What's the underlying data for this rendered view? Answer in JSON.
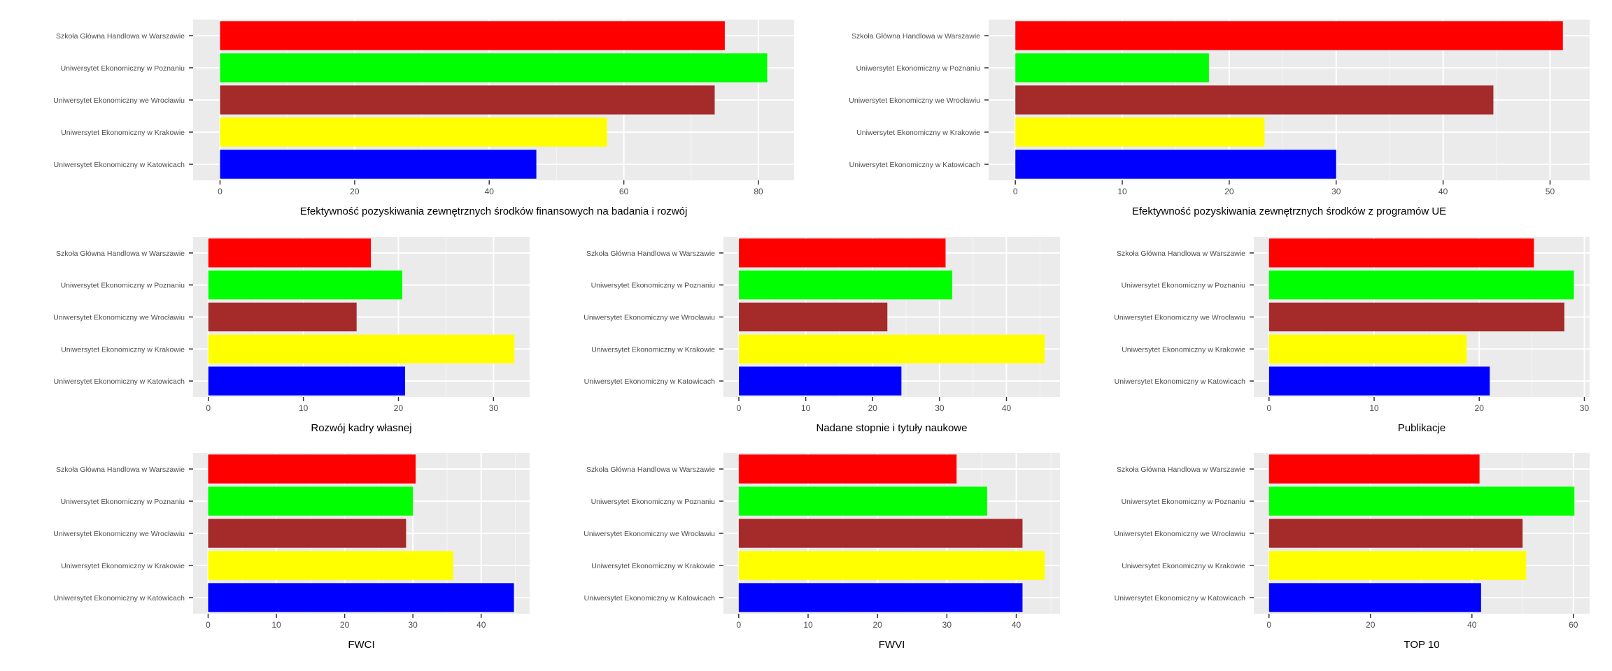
{
  "chart_data": [
    {
      "type": "bar",
      "orientation": "horizontal",
      "categories": [
        "Szkoła Główna Handlowa w Warszawie",
        "Uniwersytet Ekonomiczny w Poznaniu",
        "Uniwersytet Ekonomiczny we Wrocławiu",
        "Uniwersytet Ekonomiczny w Krakowie",
        "Uniwersytet Ekonomiczny w Katowicach"
      ],
      "values": [
        75,
        81.3,
        73.5,
        57.5,
        47
      ],
      "colors": [
        "#ff0000",
        "#00ff00",
        "#a52a2a",
        "#ffff00",
        "#0000ff"
      ],
      "xlabel": "Efektywność pozyskiwania zewnętrznych środków finansowych na badania i rozwój",
      "xlim": [
        -4,
        85.3
      ],
      "xticks": [
        0,
        20,
        40,
        60,
        80
      ],
      "grid": true
    },
    {
      "type": "bar",
      "orientation": "horizontal",
      "categories": [
        "Szkoła Główna Handlowa w Warszawie",
        "Uniwersytet Ekonomiczny w Poznaniu",
        "Uniwersytet Ekonomiczny we Wrocławiu",
        "Uniwersytet Ekonomiczny w Krakowie",
        "Uniwersytet Ekonomiczny w Katowicach"
      ],
      "values": [
        51.2,
        18.1,
        44.7,
        23.3,
        30
      ],
      "colors": [
        "#ff0000",
        "#00ff00",
        "#a52a2a",
        "#ffff00",
        "#0000ff"
      ],
      "xlabel": "Efektywność pozyskiwania zewnętrznych środków z programów UE",
      "xlim": [
        -2.5,
        53.7
      ],
      "xticks": [
        0,
        10,
        20,
        30,
        40,
        50
      ],
      "grid": true
    },
    {
      "type": "bar",
      "orientation": "horizontal",
      "categories": [
        "Szkoła Główna Handlowa w Warszawie",
        "Uniwersytet Ekonomiczny w Poznaniu",
        "Uniwersytet Ekonomiczny we Wrocławiu",
        "Uniwersytet Ekonomiczny w Krakowie",
        "Uniwersytet Ekonomiczny w Katowicach"
      ],
      "values": [
        17.1,
        20.4,
        15.6,
        32.2,
        20.7
      ],
      "colors": [
        "#ff0000",
        "#00ff00",
        "#a52a2a",
        "#ffff00",
        "#0000ff"
      ],
      "xlabel": "Rozwój kadry własnej",
      "xlim": [
        -1.6,
        33.8
      ],
      "xticks": [
        0,
        10,
        20,
        30
      ],
      "grid": true
    },
    {
      "type": "bar",
      "orientation": "horizontal",
      "categories": [
        "Szkoła Główna Handlowa w Warszawie",
        "Uniwersytet Ekonomiczny w Poznaniu",
        "Uniwersytet Ekonomiczny we Wrocławiu",
        "Uniwersytet Ekonomiczny w Krakowie",
        "Uniwersytet Ekonomiczny w Katowicach"
      ],
      "values": [
        30.9,
        31.9,
        22.2,
        45.7,
        24.3
      ],
      "colors": [
        "#ff0000",
        "#00ff00",
        "#a52a2a",
        "#ffff00",
        "#0000ff"
      ],
      "xlabel": "Nadane stopnie i tytuły naukowe",
      "xlim": [
        -2.3,
        48
      ],
      "xticks": [
        0,
        10,
        20,
        30,
        40
      ],
      "grid": true
    },
    {
      "type": "bar",
      "orientation": "horizontal",
      "categories": [
        "Szkoła Główna Handlowa w Warszawie",
        "Uniwersytet Ekonomiczny w Poznaniu",
        "Uniwersytet Ekonomiczny we Wrocławiu",
        "Uniwersytet Ekonomiczny w Krakowie",
        "Uniwersytet Ekonomiczny w Katowicach"
      ],
      "values": [
        25.2,
        29,
        28.1,
        18.8,
        21
      ],
      "colors": [
        "#ff0000",
        "#00ff00",
        "#a52a2a",
        "#ffff00",
        "#0000ff"
      ],
      "xlabel": "Publikacje",
      "xlim": [
        -1.45,
        30.5
      ],
      "xticks": [
        0,
        10,
        20,
        30
      ],
      "grid": true
    },
    {
      "type": "bar",
      "orientation": "horizontal",
      "categories": [
        "Szkoła Główna Handlowa w Warszawie",
        "Uniwersytet Ekonomiczny w Poznaniu",
        "Uniwersytet Ekonomiczny we Wrocławiu",
        "Uniwersytet Ekonomiczny w Krakowie",
        "Uniwersytet Ekonomiczny w Katowicach"
      ],
      "values": [
        30.4,
        30,
        29,
        35.9,
        44.8
      ],
      "colors": [
        "#ff0000",
        "#00ff00",
        "#a52a2a",
        "#ffff00",
        "#0000ff"
      ],
      "xlabel": "FWCI",
      "xlim": [
        -2.2,
        47.1
      ],
      "xticks": [
        0,
        10,
        20,
        30,
        40
      ],
      "grid": true
    },
    {
      "type": "bar",
      "orientation": "horizontal",
      "categories": [
        "Szkoła Główna Handlowa w Warszawie",
        "Uniwersytet Ekonomiczny w Poznaniu",
        "Uniwersytet Ekonomiczny we Wrocławiu",
        "Uniwersytet Ekonomiczny w Krakowie",
        "Uniwersytet Ekonomiczny w Katowicach"
      ],
      "values": [
        31.4,
        35.8,
        40.9,
        44.1,
        40.9
      ],
      "colors": [
        "#ff0000",
        "#00ff00",
        "#a52a2a",
        "#ffff00",
        "#0000ff"
      ],
      "xlabel": "FWVI",
      "xlim": [
        -2.2,
        46.3
      ],
      "xticks": [
        0,
        10,
        20,
        30,
        40
      ],
      "grid": true
    },
    {
      "type": "bar",
      "orientation": "horizontal",
      "categories": [
        "Szkoła Główna Handlowa w Warszawie",
        "Uniwersytet Ekonomiczny w Poznaniu",
        "Uniwersytet Ekonomiczny we Wrocławiu",
        "Uniwersytet Ekonomiczny w Krakowie",
        "Uniwersytet Ekonomiczny w Katowicach"
      ],
      "values": [
        41.5,
        60.2,
        50,
        50.7,
        41.8
      ],
      "colors": [
        "#ff0000",
        "#00ff00",
        "#a52a2a",
        "#ffff00",
        "#0000ff"
      ],
      "xlabel": "TOP 10",
      "xlim": [
        -3,
        63.2
      ],
      "xticks": [
        0,
        20,
        40,
        60
      ],
      "grid": true
    }
  ]
}
